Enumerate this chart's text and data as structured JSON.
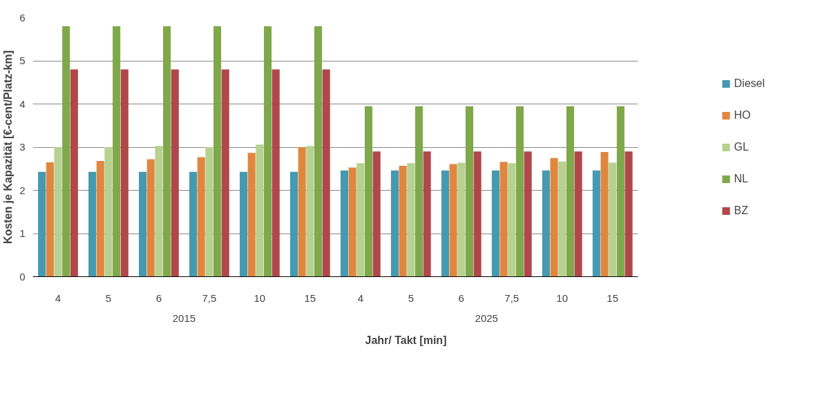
{
  "chart_data": {
    "type": "bar",
    "xlabel": "Jahr/ Takt [min]",
    "ylabel": "Kosten je Kapazität [€-cent/Platz-km]",
    "categories": [
      "4",
      "5",
      "6",
      "7,5",
      "10",
      "15",
      "4",
      "5",
      "6",
      "7,5",
      "10",
      "15"
    ],
    "annotations": [
      "2015",
      "2025"
    ],
    "series": [
      {
        "name": "Diesel",
        "color": "#4599b1",
        "values": [
          2.43,
          2.43,
          2.43,
          2.43,
          2.43,
          2.43,
          2.46,
          2.46,
          2.46,
          2.46,
          2.46,
          2.46
        ]
      },
      {
        "name": "HO",
        "color": "#e0873f",
        "values": [
          2.65,
          2.68,
          2.72,
          2.77,
          2.87,
          3.0,
          2.53,
          2.57,
          2.61,
          2.66,
          2.75,
          2.89
        ]
      },
      {
        "name": "GL",
        "color": "#b6d190",
        "values": [
          3.0,
          3.0,
          3.03,
          3.0,
          3.06,
          3.03,
          2.63,
          2.63,
          2.64,
          2.63,
          2.67,
          2.64
        ]
      },
      {
        "name": "NL",
        "color": "#7fa84b",
        "values": [
          5.8,
          5.8,
          5.8,
          5.8,
          5.8,
          5.8,
          3.95,
          3.95,
          3.95,
          3.95,
          3.95,
          3.95
        ]
      },
      {
        "name": "BZ",
        "color": "#b0484b",
        "values": [
          4.8,
          4.8,
          4.8,
          4.8,
          4.8,
          4.8,
          2.9,
          2.9,
          2.9,
          2.9,
          2.9,
          2.9
        ]
      }
    ],
    "ylim": [
      0,
      6
    ],
    "yticks": [
      0,
      1,
      2,
      3,
      4,
      5,
      6
    ],
    "grid": "y",
    "legend": "right"
  }
}
